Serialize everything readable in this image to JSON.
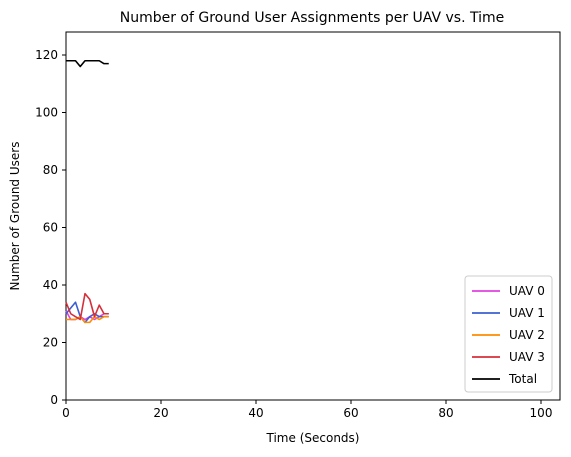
{
  "chart_data": {
    "type": "line",
    "title": "Number of Ground User Assignments per UAV vs. Time",
    "xlabel": "Time (Seconds)",
    "ylabel": "Number of Ground Users",
    "xlim": [
      0,
      104
    ],
    "ylim": [
      0,
      128
    ],
    "xticks": [
      0,
      20,
      40,
      60,
      80,
      100
    ],
    "yticks": [
      0,
      20,
      40,
      60,
      80,
      100,
      120
    ],
    "grid": false,
    "legend_position": "lower-right",
    "series": [
      {
        "name": "UAV 0",
        "color": "#e040e0",
        "x": [
          0,
          1,
          2,
          3,
          4,
          5,
          6,
          7,
          8,
          9
        ],
        "y": [
          31,
          28,
          28,
          29,
          28,
          29,
          28,
          29,
          30,
          30
        ]
      },
      {
        "name": "UAV 1",
        "color": "#3b5fd1",
        "x": [
          0,
          1,
          2,
          3,
          4,
          5,
          6,
          7,
          8,
          9
        ],
        "y": [
          30,
          32,
          34,
          29,
          27,
          29,
          30,
          29,
          29,
          29
        ]
      },
      {
        "name": "UAV 2",
        "color": "#ff8c00",
        "x": [
          0,
          1,
          2,
          3,
          4,
          5,
          6,
          7,
          8,
          9
        ],
        "y": [
          28,
          28,
          28,
          29,
          27,
          27,
          29,
          28,
          29,
          29
        ]
      },
      {
        "name": "UAV 3",
        "color": "#d62f3a",
        "x": [
          0,
          1,
          2,
          3,
          4,
          5,
          6,
          7,
          8,
          9
        ],
        "y": [
          34,
          30,
          29,
          28,
          37,
          35,
          29,
          33,
          30,
          30
        ]
      },
      {
        "name": "Total",
        "color": "#000000",
        "x": [
          0,
          1,
          2,
          3,
          4,
          5,
          6,
          7,
          8,
          9
        ],
        "y": [
          118,
          118,
          118,
          116,
          118,
          118,
          118,
          118,
          117,
          117
        ]
      }
    ]
  }
}
